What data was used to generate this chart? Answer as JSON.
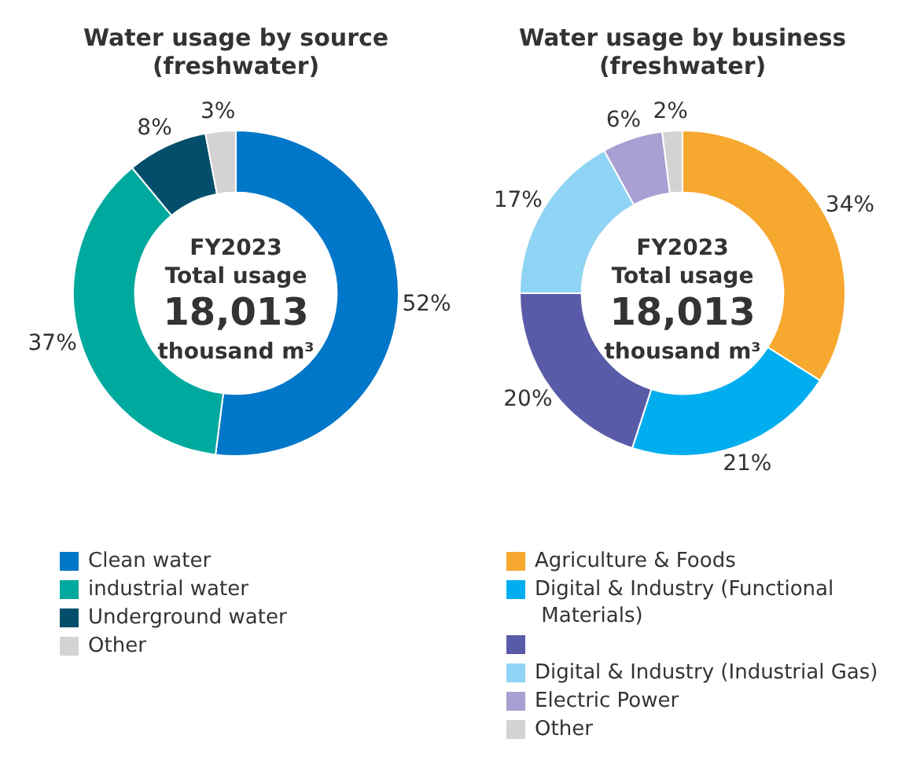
{
  "chart_data": [
    {
      "type": "donut",
      "title": "Water usage by source",
      "subtitle": "(freshwater)",
      "categories": [
        "Clean water",
        "industrial water",
        "Underground water",
        "Other"
      ],
      "values": [
        52,
        37,
        8,
        3
      ],
      "colors": [
        "#0077c8",
        "#00a99d",
        "#034f6b",
        "#d3d3d3"
      ],
      "value_labels": [
        "52%",
        "37%",
        "8%",
        "3%"
      ],
      "legend": "bottom",
      "annotations": [
        "FY2023",
        "Total usage",
        "18,013",
        "thousand m³"
      ]
    },
    {
      "type": "donut",
      "title": "Water usage by business",
      "subtitle": "(freshwater)",
      "categories": [
        "Agriculture & Foods",
        "Digital & Industry (Functional Materials)",
        null,
        "Digital & Industry (Industrial Gas)",
        "Electric Power",
        "Other"
      ],
      "values": [
        34,
        21,
        20,
        17,
        6,
        2
      ],
      "colors": [
        "#f7a82f",
        "#00aeef",
        "#5a5ba8",
        "#8fd4f4",
        "#a99fd2",
        "#d3d3d3"
      ],
      "value_labels": [
        "34%",
        "21%",
        "20%",
        "17%",
        "6%",
        "2%"
      ],
      "legend": "bottom",
      "annotations": [
        "FY2023",
        "Total usage",
        "18,013",
        "thousand m³"
      ]
    }
  ]
}
